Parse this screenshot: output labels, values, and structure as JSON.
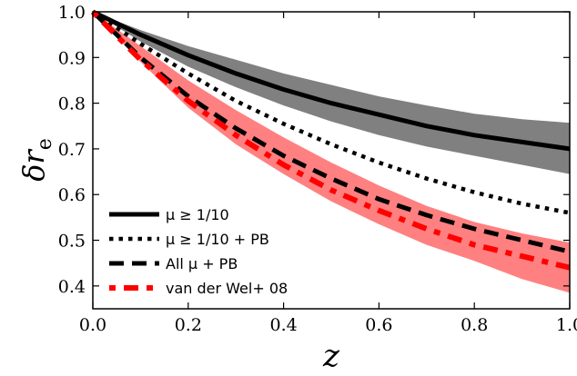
{
  "chart_data": {
    "type": "line",
    "xlabel": "z",
    "ylabel": "δr",
    "ylabel_subscript": "e",
    "xlim": [
      0.0,
      1.0
    ],
    "ylim": [
      0.35,
      1.0
    ],
    "xticks": [
      0.0,
      0.2,
      0.4,
      0.6,
      0.8,
      1.0
    ],
    "xtick_labels": [
      "0.0",
      "0.2",
      "0.4",
      "0.6",
      "0.8",
      "1.0"
    ],
    "yticks": [
      0.4,
      0.5,
      0.6,
      0.7,
      0.8,
      0.9,
      1.0
    ],
    "ytick_labels": [
      "0.4",
      "0.5",
      "0.6",
      "0.7",
      "0.8",
      "0.9",
      "1.0"
    ],
    "grid": false,
    "legend_position": "lower-left",
    "bands": [
      {
        "color": "#808080",
        "x": [
          0.0,
          0.1,
          0.2,
          0.3,
          0.4,
          0.5,
          0.6,
          0.7,
          0.8,
          0.9,
          1.0
        ],
        "lower": [
          1.0,
          0.935,
          0.88,
          0.835,
          0.795,
          0.76,
          0.73,
          0.705,
          0.685,
          0.665,
          0.645
        ],
        "upper": [
          1.0,
          0.96,
          0.925,
          0.895,
          0.865,
          0.84,
          0.815,
          0.795,
          0.777,
          0.765,
          0.757
        ]
      },
      {
        "color": "#ff8080",
        "x": [
          0.0,
          0.1,
          0.2,
          0.3,
          0.4,
          0.5,
          0.6,
          0.7,
          0.8,
          0.9,
          1.0
        ],
        "lower": [
          1.0,
          0.89,
          0.79,
          0.71,
          0.645,
          0.585,
          0.535,
          0.49,
          0.455,
          0.415,
          0.385
        ],
        "upper": [
          1.0,
          0.925,
          0.85,
          0.785,
          0.725,
          0.67,
          0.62,
          0.575,
          0.54,
          0.515,
          0.495
        ]
      }
    ],
    "series": [
      {
        "name": "μ ≥ 1/10",
        "style": "solid",
        "color": "#000000",
        "x": [
          0.0,
          0.1,
          0.2,
          0.3,
          0.4,
          0.5,
          0.6,
          0.7,
          0.8,
          0.9,
          1.0
        ],
        "values": [
          1.0,
          0.95,
          0.905,
          0.865,
          0.83,
          0.8,
          0.775,
          0.75,
          0.73,
          0.715,
          0.7
        ]
      },
      {
        "name": "μ ≥ 1/10 + PB",
        "style": "dotted",
        "color": "#000000",
        "x": [
          0.0,
          0.1,
          0.2,
          0.3,
          0.4,
          0.5,
          0.6,
          0.7,
          0.8,
          0.9,
          1.0
        ],
        "values": [
          1.0,
          0.93,
          0.865,
          0.805,
          0.755,
          0.71,
          0.67,
          0.635,
          0.605,
          0.58,
          0.56
        ]
      },
      {
        "name": "All μ + PB",
        "style": "dashed",
        "color": "#000000",
        "x": [
          0.0,
          0.1,
          0.2,
          0.3,
          0.4,
          0.5,
          0.6,
          0.7,
          0.8,
          0.9,
          1.0
        ],
        "values": [
          1.0,
          0.9,
          0.815,
          0.745,
          0.685,
          0.635,
          0.59,
          0.555,
          0.525,
          0.5,
          0.475
        ]
      },
      {
        "name": "van der Wel+ 08",
        "style": "dashdot",
        "color": "#ff0000",
        "x": [
          0.0,
          0.1,
          0.2,
          0.3,
          0.4,
          0.5,
          0.6,
          0.7,
          0.8,
          0.9,
          1.0
        ],
        "values": [
          1.0,
          0.895,
          0.805,
          0.73,
          0.665,
          0.61,
          0.565,
          0.525,
          0.49,
          0.465,
          0.44
        ]
      }
    ]
  }
}
